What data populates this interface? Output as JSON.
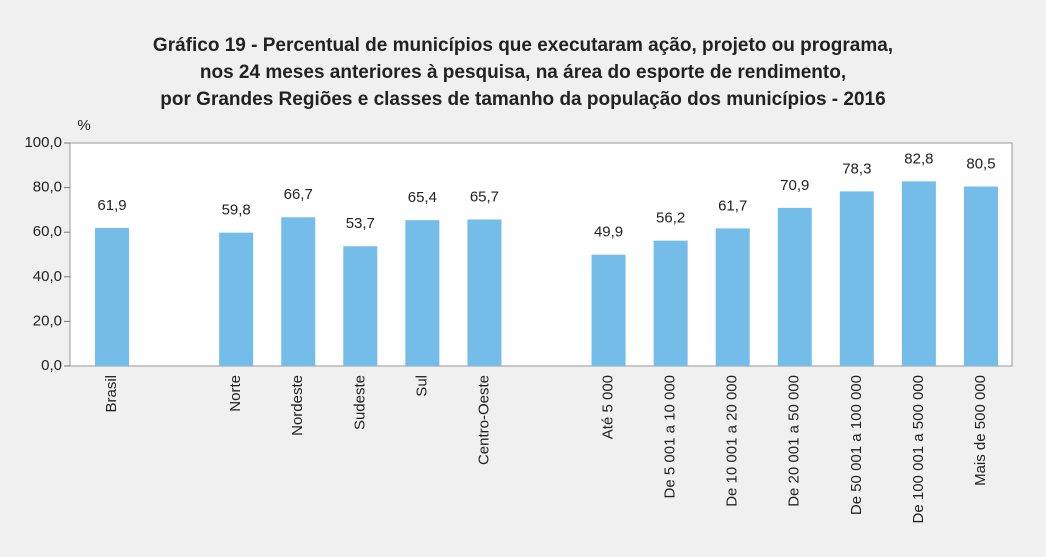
{
  "chart_data": {
    "type": "bar",
    "title": [
      "Gráfico 19 - Percentual de municípios que executaram ação, projeto ou programa,",
      "nos 24 meses anteriores à pesquisa, na área do esporte de rendimento,",
      "por Grandes Regiões e classes de tamanho da população dos municípios - 2016"
    ],
    "y_label": "%",
    "categories": [
      "Brasil",
      null,
      "Norte",
      "Nordeste",
      "Sudeste",
      "Sul",
      "Centro-Oeste",
      null,
      "Até 5 000",
      "De 5 001 a 10 000",
      "De 10 001 a 20 000",
      "De 20 001 a 50 000",
      "De 50 001 a 100 000",
      "De 100 001 a 500 000",
      "Mais de 500 000"
    ],
    "values": [
      61.9,
      null,
      59.8,
      66.7,
      53.7,
      65.4,
      65.7,
      null,
      49.9,
      56.2,
      61.7,
      70.9,
      78.3,
      82.8,
      80.5
    ],
    "value_labels": [
      "61,9",
      null,
      "59,8",
      "66,7",
      "53,7",
      "65,4",
      "65,7",
      null,
      "49,9",
      "56,2",
      "61,7",
      "70,9",
      "78,3",
      "82,8",
      "80,5"
    ],
    "color": "#74bde8",
    "ylim": [
      0,
      100
    ],
    "yticks": [
      {
        "value": 0,
        "label": "0,0"
      },
      {
        "value": 20,
        "label": "20,0"
      },
      {
        "value": 40,
        "label": "40,0"
      },
      {
        "value": 60,
        "label": "60,0"
      },
      {
        "value": 80,
        "label": "80,0"
      },
      {
        "value": 100,
        "label": "100,0"
      }
    ]
  }
}
